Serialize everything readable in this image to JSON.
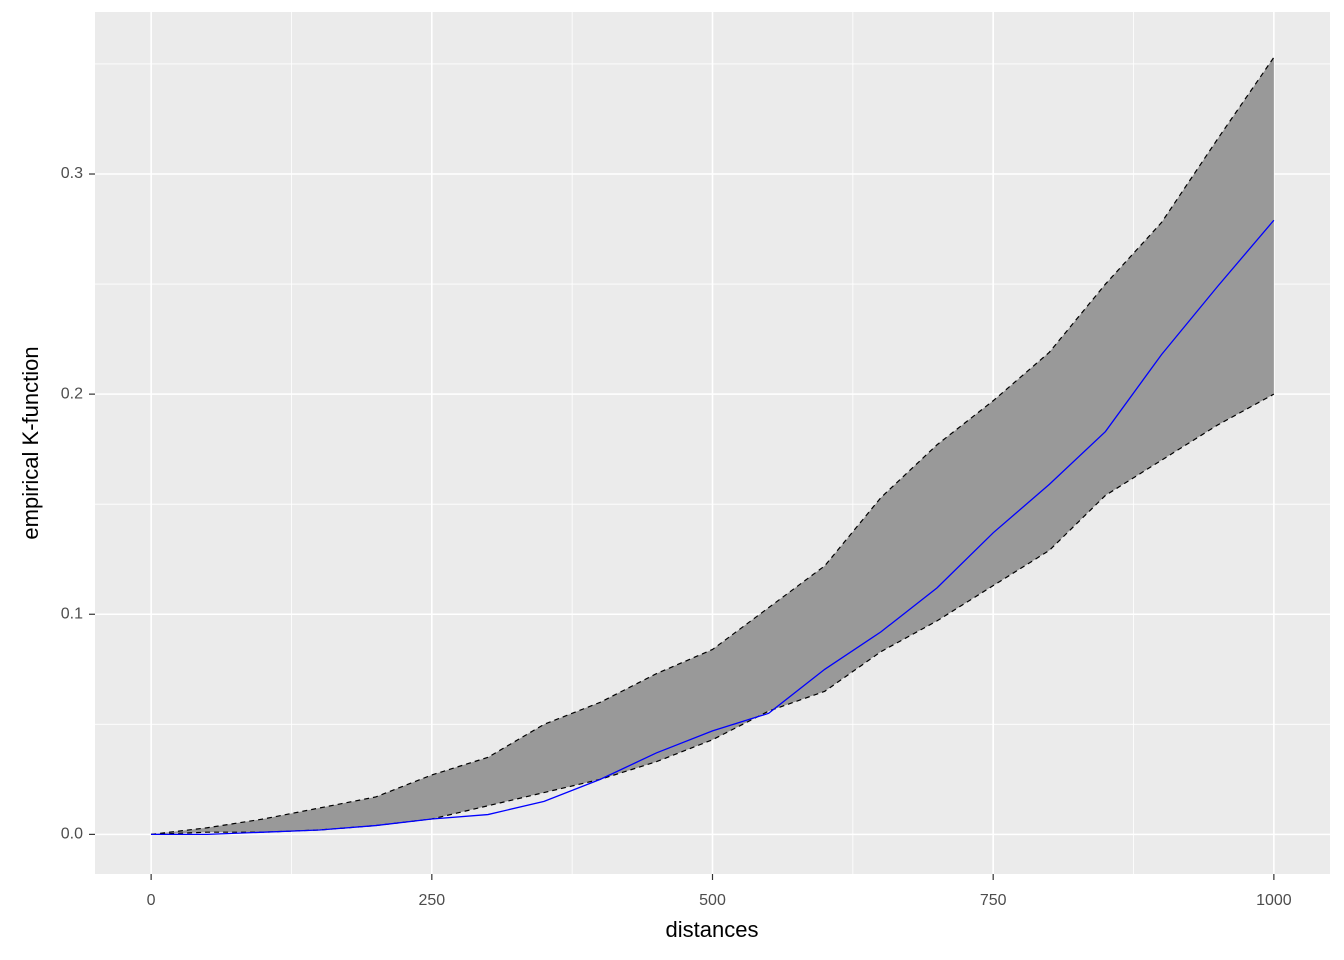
{
  "chart_data": {
    "type": "line",
    "x_label": "distances",
    "y_label": "empirical K-function",
    "x": [
      0,
      50,
      100,
      150,
      200,
      250,
      300,
      350,
      400,
      450,
      500,
      550,
      600,
      650,
      700,
      750,
      800,
      850,
      900,
      950,
      1000
    ],
    "values": [
      0,
      0,
      0.001,
      0.002,
      0.004,
      0.007,
      0.009,
      0.015,
      0.025,
      0.037,
      0.047,
      0.055,
      0.075,
      0.092,
      0.112,
      0.137,
      0.159,
      0.183,
      0.218,
      0.249,
      0.279
    ],
    "color": "#0000ff",
    "band": {
      "lower": [
        0,
        0.001,
        0.001,
        0.002,
        0.004,
        0.007,
        0.013,
        0.019,
        0.025,
        0.033,
        0.043,
        0.056,
        0.065,
        0.083,
        0.097,
        0.113,
        0.129,
        0.154,
        0.17,
        0.186,
        0.2
      ],
      "upper": [
        0,
        0.003,
        0.007,
        0.012,
        0.017,
        0.027,
        0.035,
        0.05,
        0.06,
        0.073,
        0.084,
        0.103,
        0.122,
        0.153,
        0.177,
        0.197,
        0.219,
        0.25,
        0.278,
        0.316,
        0.353
      ],
      "fill": "#999999",
      "edge_color": "#000000"
    },
    "xlim": [
      -50,
      1050
    ],
    "ylim": [
      -0.018,
      0.3736
    ],
    "xticks": [
      0,
      250,
      500,
      750,
      1000
    ],
    "yticks": [
      {
        "value": 0,
        "label": "0.0"
      },
      0.1,
      0.2,
      0.3
    ],
    "x_minor_ticks": [
      125,
      375,
      625,
      875
    ],
    "y_minor_ticks": [
      0.05,
      0.15,
      0.25,
      0.35
    ],
    "grid": true
  }
}
